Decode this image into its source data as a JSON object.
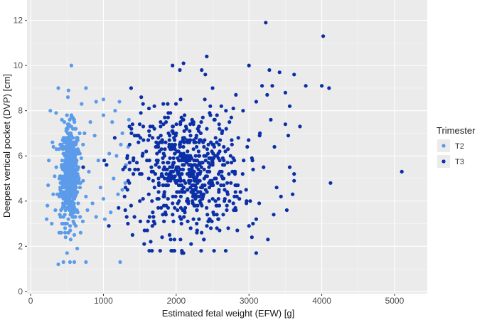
{
  "chart_data": {
    "type": "scatter",
    "xlabel": "Estimated fetal weight (EFW) [g]",
    "ylabel": "Deepest vertical pocket (DVP) [cm]",
    "xlim": [
      -50,
      5450
    ],
    "ylim": [
      -0.1,
      12.9
    ],
    "x_ticks": [
      0,
      1000,
      2000,
      3000,
      4000,
      5000
    ],
    "y_ticks": [
      0,
      2,
      4,
      6,
      8,
      10,
      12
    ],
    "x_tick_labels": [
      "0",
      "1000",
      "2000",
      "3000",
      "4000",
      "5000"
    ],
    "y_tick_labels": [
      "0",
      "2",
      "4",
      "6",
      "8",
      "10",
      "12"
    ],
    "grid": true,
    "legend_position": "right",
    "legend": {
      "title": "Trimester",
      "items": [
        {
          "label": "T2",
          "color": "#5b9bea"
        },
        {
          "label": "T3",
          "color": "#0b2fa6"
        }
      ]
    },
    "series": [
      {
        "name": "T2",
        "color": "#5b9bea",
        "points": [
          [
            380,
            9.0
          ],
          [
            560,
            10.0
          ],
          [
            520,
            8.9
          ],
          [
            270,
            8.0
          ],
          [
            700,
            8.3
          ],
          [
            760,
            9.0
          ],
          [
            900,
            8.4
          ],
          [
            1000,
            8.5
          ],
          [
            1160,
            8.0
          ],
          [
            1220,
            8.4
          ],
          [
            1120,
            7.5
          ],
          [
            1000,
            7.8
          ],
          [
            820,
            7.5
          ],
          [
            300,
            6.6
          ],
          [
            250,
            5.8
          ],
          [
            240,
            4.7
          ],
          [
            230,
            3.8
          ],
          [
            220,
            3.2
          ],
          [
            290,
            3.0
          ],
          [
            380,
            1.2
          ],
          [
            450,
            1.3
          ],
          [
            540,
            1.3
          ],
          [
            600,
            1.3
          ],
          [
            760,
            1.3
          ],
          [
            500,
            1.7
          ],
          [
            640,
            1.9
          ],
          [
            1230,
            1.3
          ],
          [
            1100,
            3.5
          ],
          [
            1140,
            5.0
          ],
          [
            1240,
            6.5
          ],
          [
            1260,
            7.0
          ],
          [
            1300,
            4.8
          ],
          [
            1020,
            3.2
          ],
          [
            960,
            4.6
          ],
          [
            930,
            5.8
          ],
          [
            880,
            6.9
          ],
          [
            800,
            5.3
          ],
          [
            760,
            4.2
          ],
          [
            680,
            3.3
          ],
          [
            660,
            6.2
          ],
          [
            720,
            6.5
          ],
          [
            740,
            7.0
          ],
          [
            620,
            7.2
          ],
          [
            430,
            7.6
          ],
          [
            350,
            7.9
          ],
          [
            330,
            5.1
          ],
          [
            310,
            4.3
          ],
          [
            340,
            3.6
          ],
          [
            400,
            3.4
          ],
          [
            420,
            2.6
          ],
          [
            480,
            2.4
          ],
          [
            550,
            2.3
          ],
          [
            600,
            2.5
          ],
          [
            620,
            2.9
          ],
          [
            1080,
            6.1
          ],
          [
            1180,
            6.0
          ],
          [
            1040,
            5.6
          ],
          [
            850,
            3.9
          ],
          [
            780,
            3.6
          ],
          [
            900,
            3.3
          ],
          [
            1000,
            4.1
          ],
          [
            1200,
            4.3
          ],
          [
            1260,
            4.5
          ],
          [
            1310,
            5.6
          ],
          [
            1340,
            6.4
          ],
          [
            1350,
            7.6
          ]
        ],
        "cluster": {
          "x_center": 540,
          "x_sd": 65,
          "y_center": 5.2,
          "y_sd": 1.05,
          "n": 520,
          "y_min": 2.6,
          "y_max": 8.9
        }
      },
      {
        "name": "T3",
        "color": "#0b2fa6",
        "points": [
          [
            3230,
            11.9
          ],
          [
            4020,
            11.3
          ],
          [
            2420,
            10.4
          ],
          [
            2350,
            9.8
          ],
          [
            2400,
            9.6
          ],
          [
            2100,
            10.1
          ],
          [
            1950,
            10.0
          ],
          [
            2050,
            9.8
          ],
          [
            2500,
            9.0
          ],
          [
            3000,
            10.0
          ],
          [
            3180,
            9.1
          ],
          [
            3280,
            9.8
          ],
          [
            3320,
            9.1
          ],
          [
            3420,
            9.7
          ],
          [
            3620,
            9.6
          ],
          [
            3780,
            9.1
          ],
          [
            4000,
            9.1
          ],
          [
            4100,
            9.0
          ],
          [
            3250,
            8.7
          ],
          [
            3500,
            8.8
          ],
          [
            2820,
            8.7
          ],
          [
            2620,
            8.2
          ],
          [
            2560,
            7.8
          ],
          [
            2460,
            7.9
          ],
          [
            3100,
            8.4
          ],
          [
            1380,
            9.0
          ],
          [
            1400,
            7.4
          ],
          [
            1460,
            6.9
          ],
          [
            1700,
            8.2
          ],
          [
            1520,
            8.6
          ],
          [
            4120,
            4.8
          ],
          [
            5100,
            5.3
          ],
          [
            3560,
            5.5
          ],
          [
            3620,
            5.2
          ],
          [
            3440,
            4.2
          ],
          [
            3600,
            4.3
          ],
          [
            3380,
            4.6
          ],
          [
            3340,
            3.4
          ],
          [
            3260,
            2.3
          ],
          [
            3100,
            1.7
          ],
          [
            3040,
            2.4
          ],
          [
            3100,
            3.2
          ],
          [
            3000,
            2.9
          ],
          [
            2840,
            2.7
          ],
          [
            2820,
            3.6
          ],
          [
            2680,
            1.8
          ],
          [
            2520,
            1.8
          ],
          [
            2380,
            2.3
          ],
          [
            2100,
            1.7
          ],
          [
            2080,
            1.7
          ],
          [
            1780,
            1.8
          ],
          [
            1650,
            2.2
          ],
          [
            1560,
            2.1
          ],
          [
            1400,
            2.5
          ],
          [
            1320,
            3.3
          ],
          [
            1380,
            3.8
          ],
          [
            1290,
            4.2
          ],
          [
            1340,
            4.9
          ],
          [
            1360,
            5.7
          ],
          [
            1330,
            6.0
          ],
          [
            1360,
            6.5
          ],
          [
            3500,
            7.4
          ],
          [
            3540,
            6.9
          ],
          [
            3560,
            8.2
          ],
          [
            3520,
            3.6
          ],
          [
            3200,
            5.5
          ],
          [
            3150,
            7.0
          ],
          [
            3300,
            7.6
          ],
          [
            3620,
            4.9
          ],
          [
            3700,
            7.3
          ]
        ],
        "cluster": {
          "x_center": 2150,
          "x_sd": 380,
          "y_center": 5.3,
          "y_sd": 1.35,
          "n": 620,
          "y_min": 1.8,
          "y_max": 9.9
        }
      }
    ]
  }
}
